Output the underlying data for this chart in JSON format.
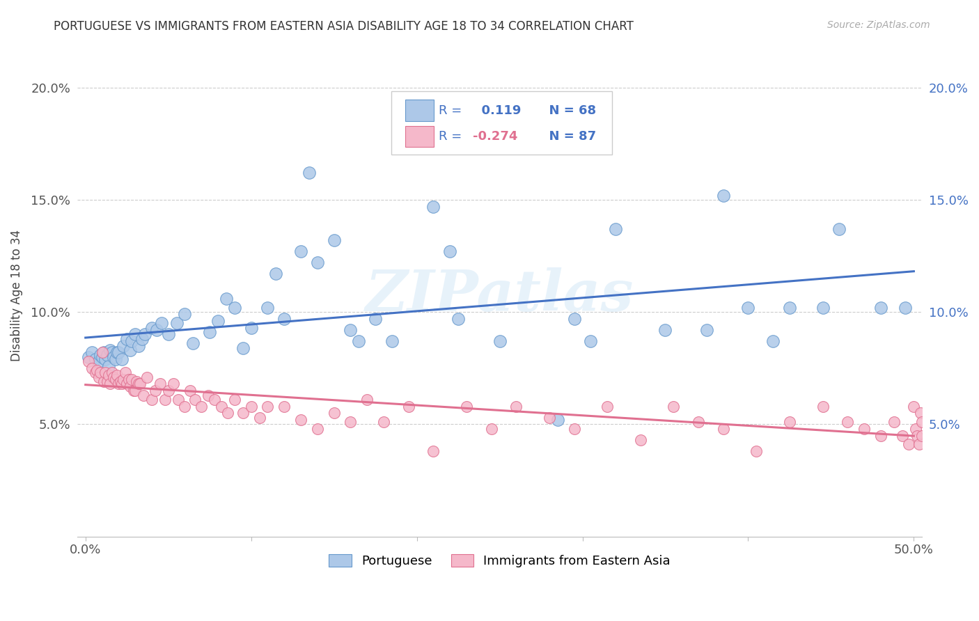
{
  "title": "PORTUGUESE VS IMMIGRANTS FROM EASTERN ASIA DISABILITY AGE 18 TO 34 CORRELATION CHART",
  "source": "Source: ZipAtlas.com",
  "ylabel": "Disability Age 18 to 34",
  "xlim": [
    -0.005,
    0.505
  ],
  "ylim": [
    0.0,
    0.215
  ],
  "xticks": [
    0.0,
    0.1,
    0.2,
    0.3,
    0.4,
    0.5
  ],
  "xticklabels": [
    "0.0%",
    "",
    "",
    "",
    "",
    "50.0%"
  ],
  "yticks_left": [
    0.05,
    0.1,
    0.15,
    0.2
  ],
  "yticklabels_left": [
    "5.0%",
    "10.0%",
    "15.0%",
    "20.0%"
  ],
  "yticks_right": [
    0.05,
    0.1,
    0.15,
    0.2
  ],
  "yticklabels_right": [
    "5.0%",
    "10.0%",
    "15.0%",
    "20.0%"
  ],
  "blue_R": 0.119,
  "blue_N": 68,
  "pink_R": -0.274,
  "pink_N": 87,
  "blue_color": "#adc8e8",
  "blue_edge": "#6699cc",
  "pink_color": "#f5b8ca",
  "pink_edge": "#e07090",
  "blue_line_color": "#4472c4",
  "pink_line_color": "#e07090",
  "watermark": "ZIPatlas",
  "blue_x": [
    0.002,
    0.004,
    0.006,
    0.008,
    0.009,
    0.01,
    0.011,
    0.012,
    0.013,
    0.014,
    0.015,
    0.016,
    0.017,
    0.018,
    0.019,
    0.02,
    0.022,
    0.023,
    0.025,
    0.027,
    0.028,
    0.03,
    0.032,
    0.034,
    0.036,
    0.04,
    0.043,
    0.046,
    0.05,
    0.055,
    0.06,
    0.065,
    0.075,
    0.08,
    0.085,
    0.09,
    0.095,
    0.1,
    0.11,
    0.115,
    0.12,
    0.13,
    0.135,
    0.14,
    0.15,
    0.16,
    0.165,
    0.175,
    0.185,
    0.195,
    0.21,
    0.22,
    0.225,
    0.25,
    0.285,
    0.295,
    0.305,
    0.32,
    0.35,
    0.375,
    0.385,
    0.4,
    0.415,
    0.425,
    0.445,
    0.455,
    0.48,
    0.495
  ],
  "blue_y": [
    0.08,
    0.082,
    0.079,
    0.078,
    0.081,
    0.08,
    0.082,
    0.079,
    0.081,
    0.076,
    0.083,
    0.082,
    0.08,
    0.079,
    0.082,
    0.082,
    0.079,
    0.085,
    0.088,
    0.083,
    0.087,
    0.09,
    0.085,
    0.088,
    0.09,
    0.093,
    0.092,
    0.095,
    0.09,
    0.095,
    0.099,
    0.086,
    0.091,
    0.096,
    0.106,
    0.102,
    0.084,
    0.093,
    0.102,
    0.117,
    0.097,
    0.127,
    0.162,
    0.122,
    0.132,
    0.092,
    0.087,
    0.097,
    0.087,
    0.177,
    0.147,
    0.127,
    0.097,
    0.087,
    0.052,
    0.097,
    0.087,
    0.137,
    0.092,
    0.092,
    0.152,
    0.102,
    0.087,
    0.102,
    0.102,
    0.137,
    0.102,
    0.102
  ],
  "pink_x": [
    0.002,
    0.004,
    0.006,
    0.007,
    0.008,
    0.009,
    0.01,
    0.011,
    0.012,
    0.013,
    0.014,
    0.015,
    0.016,
    0.017,
    0.018,
    0.019,
    0.02,
    0.021,
    0.022,
    0.023,
    0.024,
    0.025,
    0.026,
    0.027,
    0.028,
    0.029,
    0.03,
    0.031,
    0.032,
    0.033,
    0.035,
    0.037,
    0.04,
    0.042,
    0.045,
    0.048,
    0.05,
    0.053,
    0.056,
    0.06,
    0.063,
    0.066,
    0.07,
    0.074,
    0.078,
    0.082,
    0.086,
    0.09,
    0.095,
    0.1,
    0.105,
    0.11,
    0.12,
    0.13,
    0.14,
    0.15,
    0.16,
    0.17,
    0.18,
    0.195,
    0.21,
    0.23,
    0.245,
    0.26,
    0.28,
    0.295,
    0.315,
    0.335,
    0.355,
    0.37,
    0.385,
    0.405,
    0.425,
    0.445,
    0.46,
    0.47,
    0.48,
    0.488,
    0.493,
    0.497,
    0.5,
    0.501,
    0.502,
    0.503,
    0.504,
    0.505,
    0.505
  ],
  "pink_y": [
    0.078,
    0.075,
    0.073,
    0.074,
    0.071,
    0.073,
    0.082,
    0.069,
    0.073,
    0.069,
    0.072,
    0.068,
    0.073,
    0.071,
    0.07,
    0.072,
    0.068,
    0.069,
    0.068,
    0.07,
    0.073,
    0.068,
    0.07,
    0.067,
    0.07,
    0.065,
    0.065,
    0.069,
    0.068,
    0.068,
    0.063,
    0.071,
    0.061,
    0.065,
    0.068,
    0.061,
    0.065,
    0.068,
    0.061,
    0.058,
    0.065,
    0.061,
    0.058,
    0.063,
    0.061,
    0.058,
    0.055,
    0.061,
    0.055,
    0.058,
    0.053,
    0.058,
    0.058,
    0.052,
    0.048,
    0.055,
    0.051,
    0.061,
    0.051,
    0.058,
    0.038,
    0.058,
    0.048,
    0.058,
    0.053,
    0.048,
    0.058,
    0.043,
    0.058,
    0.051,
    0.048,
    0.038,
    0.051,
    0.058,
    0.051,
    0.048,
    0.045,
    0.051,
    0.045,
    0.041,
    0.058,
    0.048,
    0.045,
    0.041,
    0.055,
    0.045,
    0.051
  ]
}
